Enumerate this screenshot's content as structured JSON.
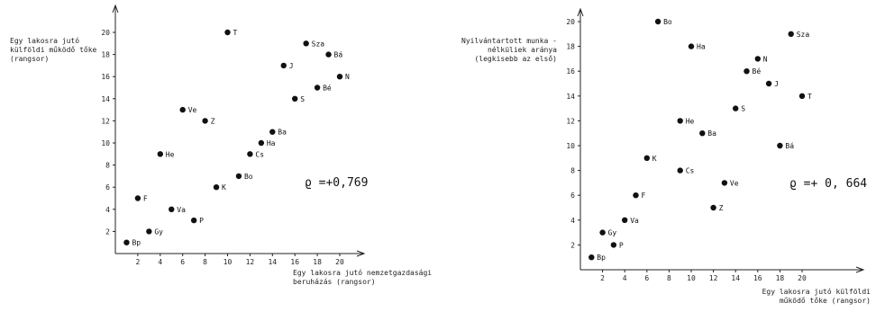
{
  "chart_data": [
    {
      "type": "scatter",
      "title": "",
      "xlabel": [
        "Egy lakosra jutó nemzetgazdasági",
        "beruházás (rangsor)"
      ],
      "ylabel": [
        "Egy lakosra jutó",
        "külföldi működő tőke",
        "(rangsor)"
      ],
      "xlim": [
        0,
        21
      ],
      "ylim": [
        0,
        21
      ],
      "xticks": [
        2,
        4,
        6,
        8,
        10,
        12,
        14,
        16,
        18,
        20
      ],
      "yticks": [
        2,
        4,
        6,
        8,
        10,
        12,
        14,
        16,
        18,
        20
      ],
      "annotation": "ϱ =+0,769",
      "points": [
        {
          "label": "Bp",
          "x": 1,
          "y": 1
        },
        {
          "label": "Gy",
          "x": 3,
          "y": 2
        },
        {
          "label": "P",
          "x": 7,
          "y": 3
        },
        {
          "label": "Va",
          "x": 5,
          "y": 4
        },
        {
          "label": "F",
          "x": 2,
          "y": 5
        },
        {
          "label": "K",
          "x": 9,
          "y": 6
        },
        {
          "label": "Bo",
          "x": 11,
          "y": 7
        },
        {
          "label": "He",
          "x": 4,
          "y": 9
        },
        {
          "label": "Cs",
          "x": 12,
          "y": 9
        },
        {
          "label": "Ha",
          "x": 13,
          "y": 10
        },
        {
          "label": "Ba",
          "x": 14,
          "y": 11
        },
        {
          "label": "Z",
          "x": 8,
          "y": 12
        },
        {
          "label": "Ve",
          "x": 6,
          "y": 13
        },
        {
          "label": "S",
          "x": 16,
          "y": 14
        },
        {
          "label": "Bé",
          "x": 18,
          "y": 15
        },
        {
          "label": "N",
          "x": 20,
          "y": 16
        },
        {
          "label": "J",
          "x": 15,
          "y": 17
        },
        {
          "label": "Bá",
          "x": 19,
          "y": 18
        },
        {
          "label": "Sza",
          "x": 17,
          "y": 19
        },
        {
          "label": "T",
          "x": 10,
          "y": 20
        }
      ]
    },
    {
      "type": "scatter",
      "title": "",
      "xlabel": [
        "Egy lakosra jutó külföldi",
        "működő tőke (rangsor)"
      ],
      "ylabel": [
        "Nyilvántartott munka -",
        "nélküliek aránya",
        "(legkisebb az első)"
      ],
      "xlim": [
        0,
        21
      ],
      "ylim": [
        0,
        21
      ],
      "xticks": [
        2,
        4,
        6,
        8,
        10,
        12,
        14,
        16,
        18,
        20
      ],
      "yticks": [
        2,
        4,
        6,
        8,
        10,
        12,
        14,
        16,
        18,
        20
      ],
      "annotation": "ϱ =+ 0, 664",
      "points": [
        {
          "label": "Bp",
          "x": 1,
          "y": 1
        },
        {
          "label": "P",
          "x": 3,
          "y": 2
        },
        {
          "label": "Gy",
          "x": 2,
          "y": 3
        },
        {
          "label": "Va",
          "x": 4,
          "y": 4
        },
        {
          "label": "Z",
          "x": 12,
          "y": 5
        },
        {
          "label": "F",
          "x": 5,
          "y": 6
        },
        {
          "label": "Ve",
          "x": 13,
          "y": 7
        },
        {
          "label": "Cs",
          "x": 9,
          "y": 8
        },
        {
          "label": "K",
          "x": 6,
          "y": 9
        },
        {
          "label": "Bá",
          "x": 18,
          "y": 10
        },
        {
          "label": "Ba",
          "x": 11,
          "y": 11
        },
        {
          "label": "He",
          "x": 9,
          "y": 12
        },
        {
          "label": "S",
          "x": 14,
          "y": 13
        },
        {
          "label": "T",
          "x": 20,
          "y": 14
        },
        {
          "label": "J",
          "x": 17,
          "y": 15
        },
        {
          "label": "Bé",
          "x": 15,
          "y": 16
        },
        {
          "label": "N",
          "x": 16,
          "y": 17
        },
        {
          "label": "Ha",
          "x": 10,
          "y": 18
        },
        {
          "label": "Sza",
          "x": 19,
          "y": 19
        },
        {
          "label": "Bo",
          "x": 7,
          "y": 20
        }
      ]
    }
  ]
}
